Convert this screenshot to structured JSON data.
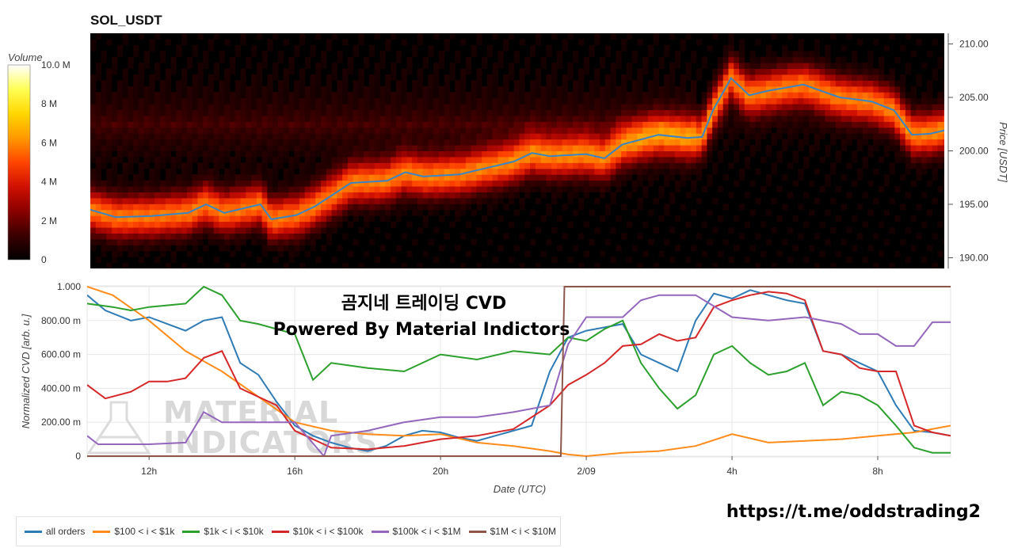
{
  "chart_data": [
    {
      "type": "heatmap",
      "title": "SOL_USDT",
      "ylabel": "Price [USDT]",
      "ylim": [
        189.0,
        211.0
      ],
      "yticks": [
        "190.00",
        "195.00",
        "200.00",
        "205.00",
        "210.00"
      ],
      "colorbar": {
        "title": "Volume",
        "range": [
          0,
          10000000
        ],
        "tick_labels": [
          "0",
          "2 M",
          "4 M",
          "6 M",
          "8 M",
          "10.0 M"
        ],
        "colors": [
          "#000000",
          "#3a0000",
          "#8a0000",
          "#d01000",
          "#ff4500",
          "#ff9900",
          "#ffd700",
          "#ffff55",
          "#ffffff"
        ]
      },
      "price_series": {
        "color": "#3b84c4",
        "x": [
          10.3,
          11.0,
          12.0,
          13.0,
          13.5,
          14.0,
          15.0,
          15.3,
          16.0,
          16.5,
          17.5,
          18.5,
          19.0,
          19.5,
          20.5,
          21.0,
          22.0,
          22.5,
          23.0,
          24.0,
          24.5,
          25.0,
          26.0,
          26.8,
          27.2,
          27.5,
          28.0,
          28.5,
          29.0,
          30.0,
          31.0,
          31.5,
          31.9,
          32.5,
          33.0,
          33.5,
          34.0
        ],
        "y": [
          194.5,
          193.8,
          193.9,
          194.2,
          195.0,
          194.2,
          195.0,
          193.6,
          194.0,
          194.8,
          197.0,
          197.2,
          198.0,
          197.6,
          197.8,
          198.2,
          199.0,
          199.8,
          199.5,
          199.7,
          199.3,
          200.6,
          201.5,
          201.2,
          201.3,
          203.8,
          206.8,
          205.2,
          205.6,
          206.2,
          205.0,
          204.8,
          204.6,
          203.8,
          201.5,
          201.6,
          202.0
        ]
      }
    },
    {
      "type": "line",
      "xlabel": "Date (UTC)",
      "ylabel": "Normalized CVD [arb. u.]",
      "xlim": [
        10.3,
        34.0
      ],
      "ylim": [
        0,
        1.0
      ],
      "xticks": [
        {
          "x": 12,
          "label": "12h"
        },
        {
          "x": 16,
          "label": "16h"
        },
        {
          "x": 20,
          "label": "20h"
        },
        {
          "x": 24,
          "label": "2/09"
        },
        {
          "x": 28,
          "label": "4h"
        },
        {
          "x": 32,
          "label": "8h"
        }
      ],
      "yticks": [
        {
          "v": 0,
          "label": "0"
        },
        {
          "v": 0.2,
          "label": "200.00 m"
        },
        {
          "v": 0.4,
          "label": "400.00 m"
        },
        {
          "v": 0.6,
          "label": "600.00 m"
        },
        {
          "v": 0.8,
          "label": "800.00 m"
        },
        {
          "v": 1.0,
          "label": "1.000"
        }
      ],
      "legend_position": "bottom-left",
      "series": [
        {
          "name": "all orders",
          "color": "#2f7bb6",
          "x": [
            10.3,
            10.8,
            11.5,
            12.0,
            12.5,
            13.0,
            13.5,
            14.0,
            14.5,
            15.0,
            15.5,
            16.0,
            16.5,
            17.0,
            17.5,
            18.0,
            18.5,
            19.0,
            19.5,
            20.0,
            20.5,
            21.0,
            21.5,
            22.0,
            22.5,
            23.0,
            23.5,
            24.0,
            24.5,
            25.0,
            25.5,
            26.0,
            26.5,
            27.0,
            27.5,
            28.0,
            28.5,
            29.0,
            29.5,
            30.0,
            30.5,
            31.0,
            31.5,
            32.0,
            32.5,
            33.0,
            33.5,
            34.0
          ],
          "y": [
            0.95,
            0.86,
            0.8,
            0.82,
            0.78,
            0.74,
            0.8,
            0.82,
            0.55,
            0.48,
            0.32,
            0.18,
            0.12,
            0.08,
            0.05,
            0.03,
            0.06,
            0.12,
            0.15,
            0.14,
            0.11,
            0.09,
            0.12,
            0.15,
            0.18,
            0.5,
            0.7,
            0.74,
            0.76,
            0.78,
            0.6,
            0.55,
            0.5,
            0.8,
            0.96,
            0.93,
            0.98,
            0.95,
            0.92,
            0.9,
            0.62,
            0.6,
            0.55,
            0.5,
            0.3,
            0.15,
            0.14,
            0.12
          ]
        },
        {
          "name": "$100 < i < $1k",
          "color": "#ff8c1a",
          "x": [
            10.3,
            11.0,
            12.0,
            13.0,
            14.0,
            15.0,
            16.0,
            17.0,
            18.0,
            19.0,
            20.0,
            21.0,
            22.0,
            23.0,
            23.5,
            24.0,
            25.0,
            26.0,
            27.0,
            28.0,
            29.0,
            30.0,
            31.0,
            32.0,
            33.0,
            34.0
          ],
          "y": [
            1.0,
            0.95,
            0.8,
            0.62,
            0.5,
            0.35,
            0.2,
            0.15,
            0.13,
            0.12,
            0.13,
            0.08,
            0.06,
            0.03,
            0.01,
            0.0,
            0.02,
            0.03,
            0.06,
            0.13,
            0.08,
            0.09,
            0.1,
            0.12,
            0.14,
            0.18
          ]
        },
        {
          "name": "$1k < i < $10k",
          "color": "#2ca02c",
          "x": [
            10.3,
            11.0,
            11.5,
            12.0,
            13.0,
            13.5,
            14.0,
            14.5,
            15.0,
            16.0,
            16.5,
            17.0,
            18.0,
            19.0,
            20.0,
            21.0,
            22.0,
            23.0,
            23.5,
            24.0,
            24.5,
            25.0,
            25.5,
            26.0,
            26.5,
            27.0,
            27.5,
            28.0,
            28.5,
            29.0,
            29.5,
            30.0,
            30.5,
            31.0,
            31.5,
            32.0,
            32.5,
            33.0,
            33.5,
            34.0
          ],
          "y": [
            0.9,
            0.88,
            0.86,
            0.88,
            0.9,
            1.0,
            0.95,
            0.8,
            0.78,
            0.72,
            0.45,
            0.55,
            0.52,
            0.5,
            0.6,
            0.57,
            0.62,
            0.6,
            0.7,
            0.68,
            0.75,
            0.8,
            0.55,
            0.4,
            0.28,
            0.36,
            0.6,
            0.65,
            0.55,
            0.48,
            0.5,
            0.55,
            0.3,
            0.38,
            0.36,
            0.3,
            0.18,
            0.05,
            0.02,
            0.02
          ]
        },
        {
          "name": "$10k < i < $100k",
          "color": "#d62728",
          "x": [
            10.3,
            10.8,
            11.5,
            12.0,
            12.5,
            13.0,
            13.5,
            14.0,
            14.5,
            15.0,
            15.5,
            16.0,
            16.5,
            17.0,
            18.0,
            19.0,
            20.0,
            21.0,
            22.0,
            23.0,
            23.5,
            24.0,
            24.5,
            25.0,
            25.5,
            26.0,
            26.5,
            27.0,
            27.5,
            28.0,
            28.5,
            29.0,
            29.5,
            30.0,
            30.5,
            31.0,
            31.5,
            32.0,
            32.5,
            33.0,
            33.5,
            34.0
          ],
          "y": [
            0.42,
            0.34,
            0.38,
            0.44,
            0.44,
            0.46,
            0.58,
            0.62,
            0.4,
            0.35,
            0.3,
            0.15,
            0.1,
            0.05,
            0.04,
            0.06,
            0.1,
            0.12,
            0.16,
            0.3,
            0.42,
            0.48,
            0.55,
            0.65,
            0.66,
            0.72,
            0.68,
            0.7,
            0.88,
            0.92,
            0.95,
            0.97,
            0.96,
            0.92,
            0.62,
            0.6,
            0.52,
            0.5,
            0.5,
            0.18,
            0.14,
            0.12
          ]
        },
        {
          "name": "$100k < i < $1M",
          "color": "#9467bd",
          "x": [
            10.3,
            10.6,
            11.0,
            12.0,
            13.0,
            13.5,
            14.0,
            15.0,
            16.0,
            16.8,
            17.0,
            18.0,
            19.0,
            20.0,
            21.0,
            22.0,
            23.0,
            23.5,
            24.0,
            25.0,
            25.5,
            26.0,
            27.0,
            28.0,
            29.0,
            30.0,
            31.0,
            31.5,
            32.0,
            32.5,
            33.0,
            33.5,
            34.0
          ],
          "y": [
            0.12,
            0.07,
            0.07,
            0.07,
            0.08,
            0.26,
            0.2,
            0.2,
            0.2,
            0.0,
            0.12,
            0.15,
            0.2,
            0.23,
            0.23,
            0.26,
            0.3,
            0.66,
            0.82,
            0.82,
            0.92,
            0.95,
            0.95,
            0.82,
            0.8,
            0.82,
            0.78,
            0.72,
            0.72,
            0.65,
            0.65,
            0.79,
            0.79
          ]
        },
        {
          "name": "$1M < i < $10M",
          "color": "#8c564b",
          "x": [
            10.3,
            23.3,
            23.4,
            34.0
          ],
          "y": [
            0.0,
            0.0,
            1.0,
            1.0
          ]
        }
      ]
    }
  ],
  "overlay": {
    "title_line1": "곰지네 트레이딩 CVD",
    "title_line2": "Powered By Material Indictors",
    "watermark_line1": "MATERIAL",
    "watermark_line2": "INDICATORS",
    "link": "https://t.me/oddstrading2"
  }
}
